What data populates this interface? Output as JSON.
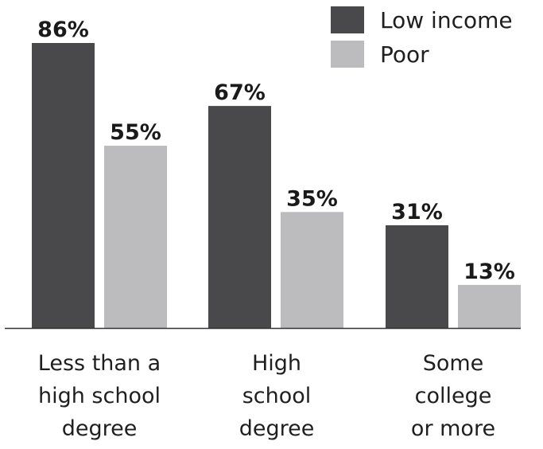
{
  "chart_data": {
    "type": "bar",
    "categories": [
      "Less than a\nhigh school\ndegree",
      "High\nschool\ndegree",
      "Some\ncollege\nor more"
    ],
    "series": [
      {
        "name": "Low income",
        "color": "#49494b",
        "values": [
          86,
          67,
          31
        ],
        "labels": [
          "86%",
          "67%",
          "31%"
        ]
      },
      {
        "name": "Poor",
        "color": "#bcbcbf",
        "values": [
          55,
          35,
          13
        ],
        "labels": [
          "55%",
          "35%",
          "13%"
        ]
      }
    ],
    "ylim": [
      0,
      86
    ],
    "unit": "%",
    "legend_position": "top-right",
    "grid": false
  }
}
